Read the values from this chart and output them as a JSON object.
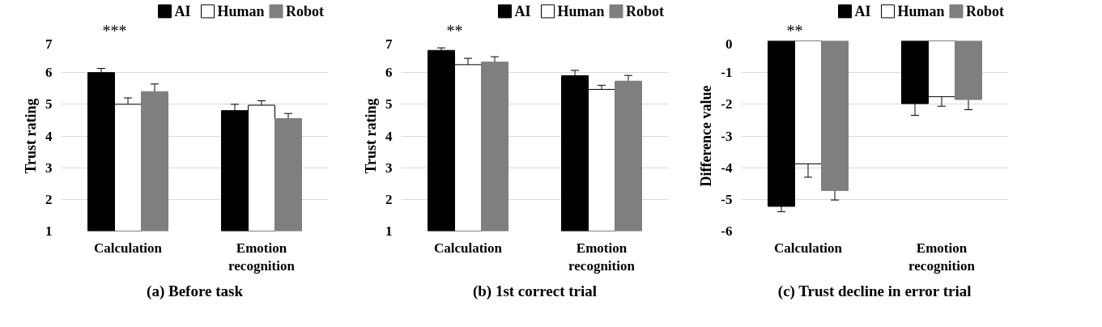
{
  "chart_data": [
    {
      "type": "bar",
      "title": "(a) Before task",
      "ylabel": "Trust rating",
      "categories": [
        "Calculation",
        "Emotion\nrecognition"
      ],
      "ylim": [
        1,
        7
      ],
      "yticks": [
        1,
        2,
        3,
        4,
        5,
        6,
        7
      ],
      "grid": "y",
      "legend": "top right",
      "annotations": [
        "***"
      ],
      "series": [
        {
          "name": "AI",
          "color": "#000000",
          "values": [
            6.0,
            4.8
          ],
          "errors": [
            0.13,
            0.2
          ]
        },
        {
          "name": "Human",
          "color": "#ffffff",
          "values": [
            5.0,
            4.97
          ],
          "errors": [
            0.2,
            0.14
          ]
        },
        {
          "name": "Robot",
          "color": "#7f7f7f",
          "values": [
            5.4,
            4.55
          ],
          "errors": [
            0.24,
            0.16
          ]
        }
      ]
    },
    {
      "type": "bar",
      "title": "(b) 1st correct trial",
      "ylabel": "Trust rating",
      "categories": [
        "Calculation",
        "Emotion\nrecognition"
      ],
      "ylim": [
        1,
        7
      ],
      "yticks": [
        1,
        2,
        3,
        4,
        5,
        6,
        7
      ],
      "grid": "y",
      "legend": "top right",
      "annotations": [
        "**"
      ],
      "series": [
        {
          "name": "AI",
          "color": "#000000",
          "values": [
            6.7,
            5.9
          ],
          "errors": [
            0.08,
            0.17
          ]
        },
        {
          "name": "Human",
          "color": "#ffffff",
          "values": [
            6.25,
            5.47
          ],
          "errors": [
            0.2,
            0.13
          ]
        },
        {
          "name": "Robot",
          "color": "#7f7f7f",
          "values": [
            6.33,
            5.73
          ],
          "errors": [
            0.17,
            0.18
          ]
        }
      ]
    },
    {
      "type": "bar",
      "title": "(c) Trust decline in error trial",
      "ylabel": "Difference value",
      "categories": [
        "Calculation",
        "Emotion\nrecognition"
      ],
      "ylim": [
        -6,
        0
      ],
      "yticks": [
        -6,
        -5,
        -4,
        -3,
        -2,
        -1,
        0
      ],
      "grid": "y",
      "legend": "top right",
      "annotations": [
        "**"
      ],
      "series": [
        {
          "name": "AI",
          "color": "#000000",
          "values": [
            -5.22,
            -1.98
          ],
          "errors": [
            0.17,
            0.37
          ]
        },
        {
          "name": "Human",
          "color": "#ffffff",
          "values": [
            -3.88,
            -1.76
          ],
          "errors": [
            0.42,
            0.3
          ]
        },
        {
          "name": "Robot",
          "color": "#7f7f7f",
          "values": [
            -4.72,
            -1.85
          ],
          "errors": [
            0.3,
            0.32
          ]
        }
      ]
    }
  ]
}
